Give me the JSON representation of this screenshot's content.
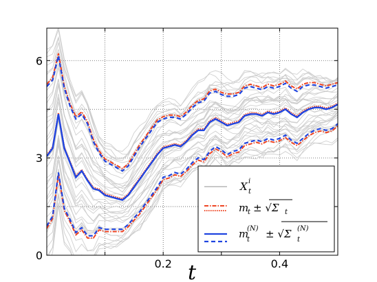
{
  "chart_data": {
    "type": "line",
    "title": "",
    "xlabel": "t",
    "ylabel": "",
    "xlim": [
      0,
      0.5
    ],
    "ylim": [
      0,
      7
    ],
    "x_ticks": [
      0.2,
      0.4
    ],
    "x_tick_labels": [
      "0.2",
      "0.4"
    ],
    "y_ticks": [
      0,
      3,
      6
    ],
    "y_tick_labels": [
      "0",
      "3",
      "6"
    ],
    "grid": true,
    "legend_position": "bottom-right",
    "legend": [
      {
        "label": "X",
        "sup": "i",
        "sub": "t",
        "style": "thin grey solid"
      },
      {
        "label": "m",
        "sub": "t",
        "pm": "± √Σ",
        "pm_sub": "t",
        "style": "red dash-dot"
      },
      {
        "label": "m",
        "sub": "t",
        "sup": "(N)",
        "pm": "± √Σ",
        "pm_sub": "t",
        "pm_sup": "(N)",
        "style": "blue solid / blue dashed"
      }
    ],
    "x": [
      0.0,
      0.01,
      0.02,
      0.03,
      0.04,
      0.05,
      0.06,
      0.07,
      0.08,
      0.09,
      0.1,
      0.11,
      0.12,
      0.13,
      0.14,
      0.15,
      0.16,
      0.17,
      0.18,
      0.19,
      0.2,
      0.21,
      0.22,
      0.23,
      0.24,
      0.25,
      0.26,
      0.27,
      0.28,
      0.29,
      0.3,
      0.31,
      0.32,
      0.33,
      0.34,
      0.35,
      0.36,
      0.37,
      0.38,
      0.39,
      0.4,
      0.41,
      0.42,
      0.43,
      0.44,
      0.45,
      0.46,
      0.47,
      0.48,
      0.49,
      0.5
    ],
    "series": [
      {
        "name": "m_t",
        "role": "mean",
        "color": "#1f44e0",
        "values": [
          3.05,
          3.3,
          4.35,
          3.3,
          2.85,
          2.4,
          2.6,
          2.3,
          2.05,
          2.0,
          1.85,
          1.8,
          1.75,
          1.7,
          1.85,
          2.1,
          2.35,
          2.6,
          2.85,
          3.1,
          3.3,
          3.35,
          3.4,
          3.35,
          3.5,
          3.7,
          3.85,
          3.85,
          4.1,
          4.2,
          4.1,
          4.0,
          4.05,
          4.1,
          4.3,
          4.35,
          4.35,
          4.3,
          4.4,
          4.35,
          4.4,
          4.5,
          4.35,
          4.25,
          4.4,
          4.5,
          4.55,
          4.55,
          4.5,
          4.55,
          4.65
        ]
      },
      {
        "name": "m_t + sqrt(Sigma_t)",
        "role": "upper",
        "color": "#1f44e0",
        "values": [
          5.2,
          5.4,
          6.15,
          5.15,
          4.6,
          4.2,
          4.35,
          4.05,
          3.5,
          3.15,
          2.9,
          2.8,
          2.7,
          2.6,
          2.75,
          3.05,
          3.35,
          3.6,
          3.85,
          4.1,
          4.2,
          4.25,
          4.25,
          4.2,
          4.35,
          4.55,
          4.7,
          4.75,
          5.0,
          5.05,
          4.95,
          4.9,
          4.9,
          4.95,
          5.15,
          5.2,
          5.15,
          5.1,
          5.2,
          5.15,
          5.2,
          5.3,
          5.15,
          5.05,
          5.2,
          5.25,
          5.25,
          5.2,
          5.15,
          5.2,
          5.25
        ]
      },
      {
        "name": "m_t - sqrt(Sigma_t)",
        "role": "lower",
        "color": "#1f44e0",
        "values": [
          0.9,
          1.2,
          2.55,
          1.45,
          1.1,
          0.7,
          0.85,
          0.6,
          0.6,
          0.85,
          0.8,
          0.8,
          0.8,
          0.8,
          0.95,
          1.15,
          1.35,
          1.6,
          1.85,
          2.1,
          2.4,
          2.45,
          2.55,
          2.5,
          2.65,
          2.85,
          3.0,
          2.95,
          3.2,
          3.35,
          3.25,
          3.1,
          3.2,
          3.25,
          3.45,
          3.5,
          3.55,
          3.5,
          3.6,
          3.55,
          3.6,
          3.7,
          3.55,
          3.45,
          3.6,
          3.75,
          3.85,
          3.9,
          3.85,
          3.9,
          4.05
        ]
      }
    ],
    "particle_count": 40
  }
}
